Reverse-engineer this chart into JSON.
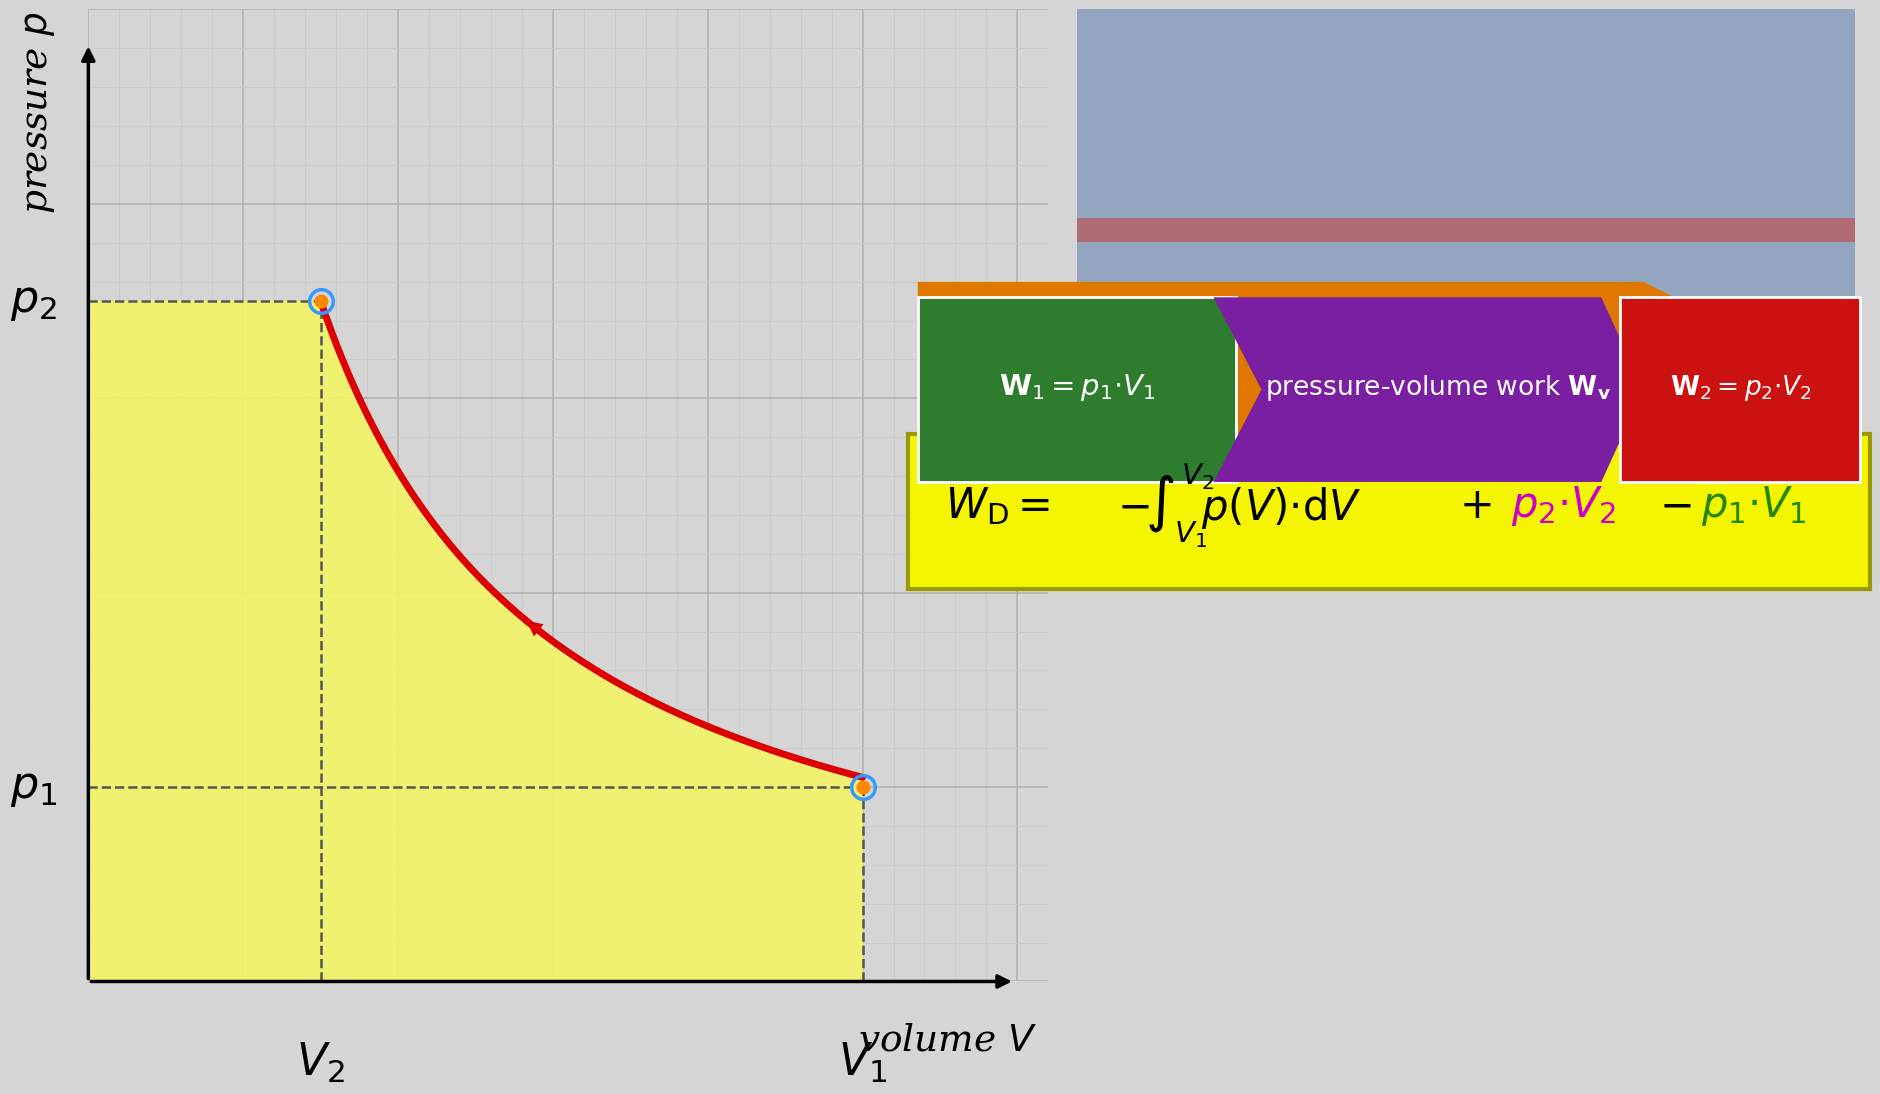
{
  "bg_color": "#d5d5d5",
  "curve_color": "#dd0000",
  "fill_color": "#f5f566",
  "fill_alpha": 0.9,
  "p1": 1.0,
  "p2": 3.5,
  "V1": 5.0,
  "V2": 1.5,
  "x_min": 0.0,
  "x_max": 6.2,
  "y_min": 0.0,
  "y_max": 5.0,
  "xlabel": "volume $V$",
  "ylabel": "pressure $p$",
  "p1_label": "$p_1$",
  "p2_label": "$p_2$",
  "V1_label": "$V_1$",
  "V2_label": "$V_2$",
  "orange_color": "#e07800",
  "green_color": "#2e7d2e",
  "purple_color": "#7b1fa2",
  "red_box_color": "#cc1111",
  "formula_bg": "#f5f500",
  "formula_border": "#999900",
  "machine_color": "#5577aa",
  "pipe_color": "#bb5555",
  "point_inner": "#ff8800",
  "point_outer": "#3399ff",
  "dash_color": "#555555",
  "grid_minor": "#c8c8c8",
  "grid_major": "#b0b0b0"
}
